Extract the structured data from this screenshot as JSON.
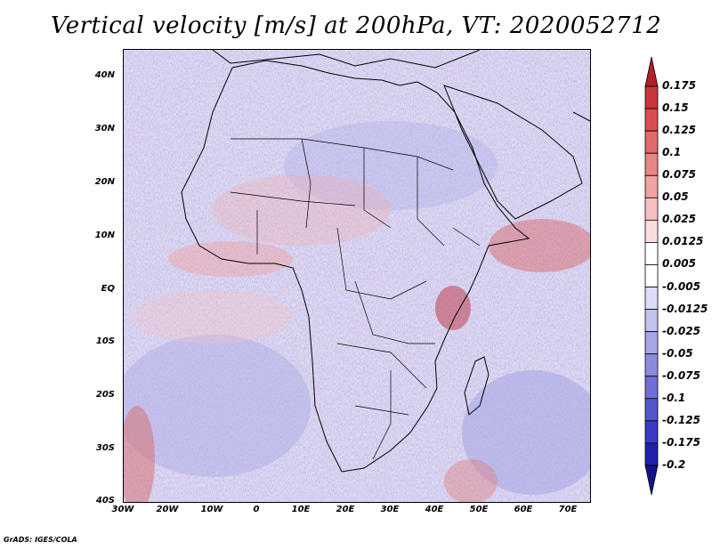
{
  "title": "Vertical velocity [m/s] at 200hPa, VT: 2020052712",
  "credit": "GrADS: IGES/COLA",
  "lat_labels": [
    "40N",
    "30N",
    "20N",
    "10N",
    "EQ",
    "10S",
    "20S",
    "30S",
    "40S"
  ],
  "lon_labels": [
    "30W",
    "20W",
    "10W",
    "0",
    "10E",
    "20E",
    "30E",
    "40E",
    "50E",
    "60E",
    "70E"
  ],
  "colorbar": {
    "labels": [
      "0.175",
      "0.15",
      "0.125",
      "0.1",
      "0.075",
      "0.05",
      "0.025",
      "0.0125",
      "0.005",
      "-0.005",
      "-0.0125",
      "-0.025",
      "-0.05",
      "-0.075",
      "-0.1",
      "-0.125",
      "-0.175",
      "-0.2"
    ],
    "colors": [
      "#b3202a",
      "#c8363c",
      "#d94f4f",
      "#e06a6a",
      "#e88686",
      "#f0a3a3",
      "#f6c0c0",
      "#fbdcdc",
      "#ffffff",
      "#ffffff",
      "#dcdcf6",
      "#c2c2ee",
      "#a6a6e6",
      "#8b8bde",
      "#6f6fd6",
      "#5454cc",
      "#3a3ac2",
      "#2020a8",
      "#14148a"
    ]
  }
}
